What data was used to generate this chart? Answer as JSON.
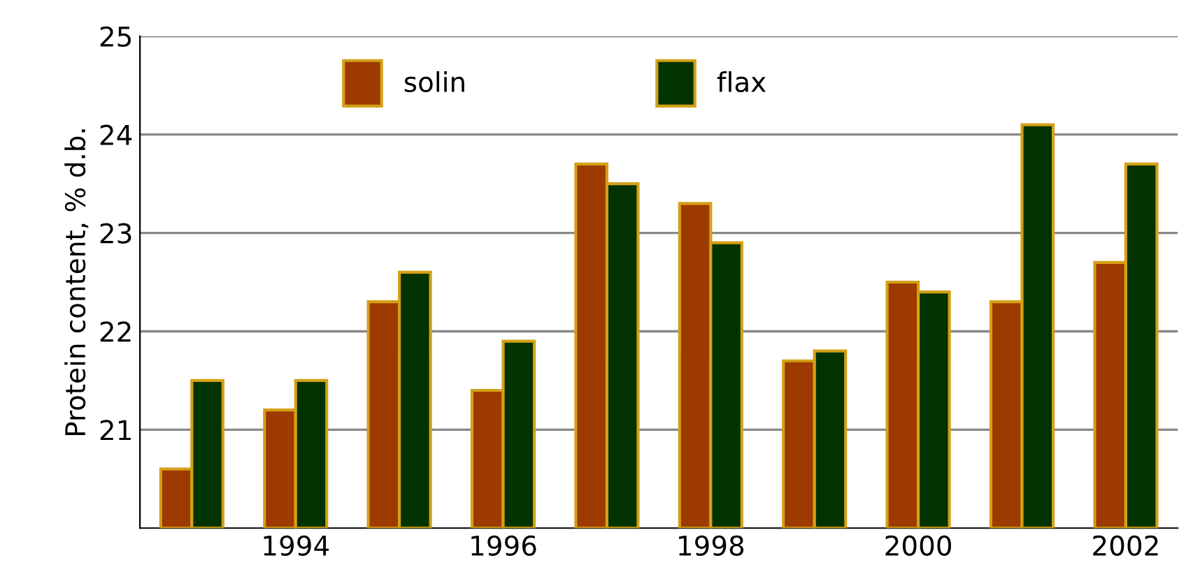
{
  "chart_data": {
    "type": "bar",
    "ylabel": "Protein content, % d.b.",
    "categories": [
      null,
      "1994",
      null,
      "1996",
      null,
      "1998",
      null,
      "2000",
      null,
      "2002"
    ],
    "series": [
      {
        "name": "solin",
        "color": "#9c3a00",
        "values": [
          20.6,
          21.2,
          22.3,
          21.4,
          23.7,
          23.3,
          21.7,
          22.5,
          22.3,
          22.7
        ]
      },
      {
        "name": "flax",
        "color": "#003300",
        "values": [
          21.5,
          21.5,
          22.6,
          21.9,
          23.5,
          22.9,
          21.8,
          22.4,
          24.1,
          23.7
        ]
      }
    ],
    "ylim": [
      20,
      25
    ],
    "yticks": [
      21,
      22,
      23,
      24,
      25
    ],
    "grid": "y",
    "legend": "top"
  }
}
